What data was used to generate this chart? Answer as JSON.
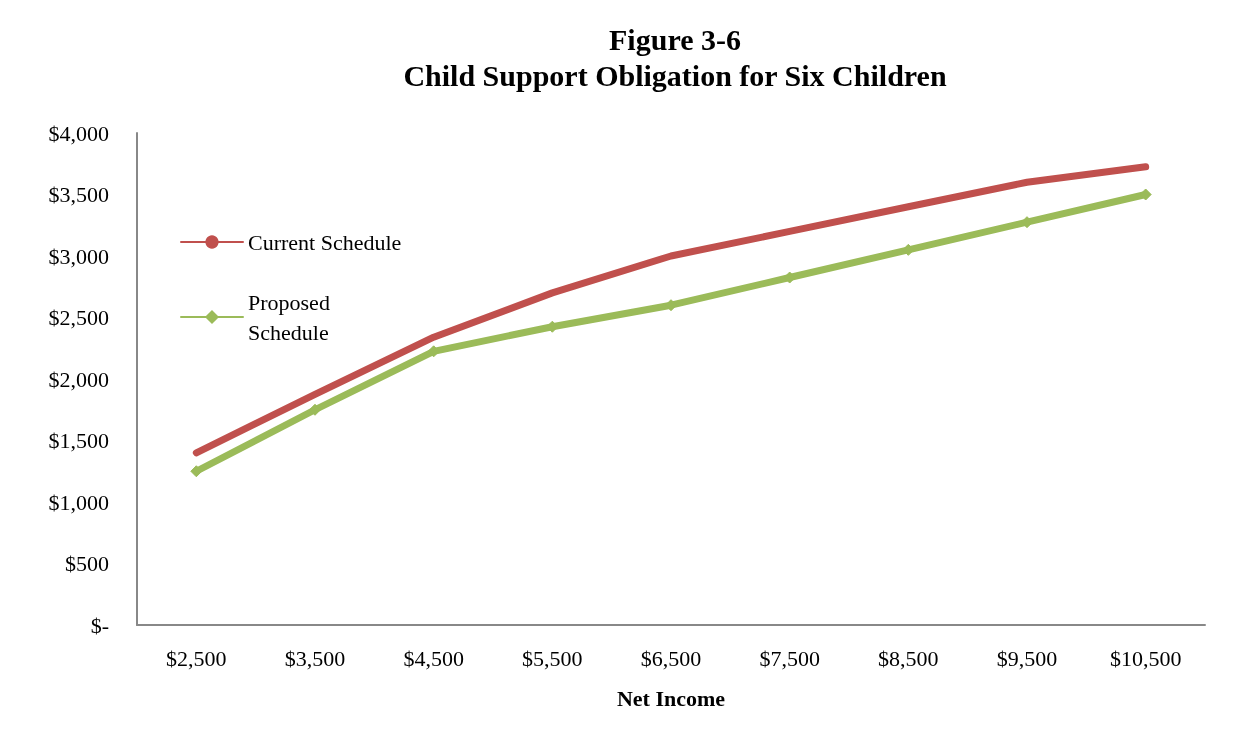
{
  "chart_data": {
    "type": "line",
    "title": "Figure 3-6\nChild Support Obligation for Six Children",
    "xlabel": "Net Income",
    "categories": [
      "$2,500",
      "$3,500",
      "$4,500",
      "$5,500",
      "$6,500",
      "$7,500",
      "$8,500",
      "$9,500",
      "$10,500"
    ],
    "series": [
      {
        "name": "Current Schedule",
        "color": "#c0504d",
        "marker": "none",
        "values": [
          1400,
          1875,
          2340,
          2700,
          3000,
          3200,
          3400,
          3600,
          3725
        ]
      },
      {
        "name": "Proposed Schedule",
        "color": "#9bbb59",
        "marker": "diamond",
        "values": [
          1250,
          1750,
          2225,
          2425,
          2600,
          2825,
          3050,
          3275,
          3500
        ]
      }
    ],
    "ylim": [
      0,
      4000
    ],
    "yticks": [
      {
        "value": 0,
        "label": "$-"
      },
      {
        "value": 500,
        "label": "$500"
      },
      {
        "value": 1000,
        "label": "$1,000"
      },
      {
        "value": 1500,
        "label": "$1,500"
      },
      {
        "value": 2000,
        "label": "$2,000"
      },
      {
        "value": 2500,
        "label": "$2,500"
      },
      {
        "value": 3000,
        "label": "$3,000"
      },
      {
        "value": 3500,
        "label": "$3,500"
      },
      {
        "value": 4000,
        "label": "$4,000"
      }
    ],
    "grid": false,
    "legend": "top left",
    "line_style": "solid"
  }
}
